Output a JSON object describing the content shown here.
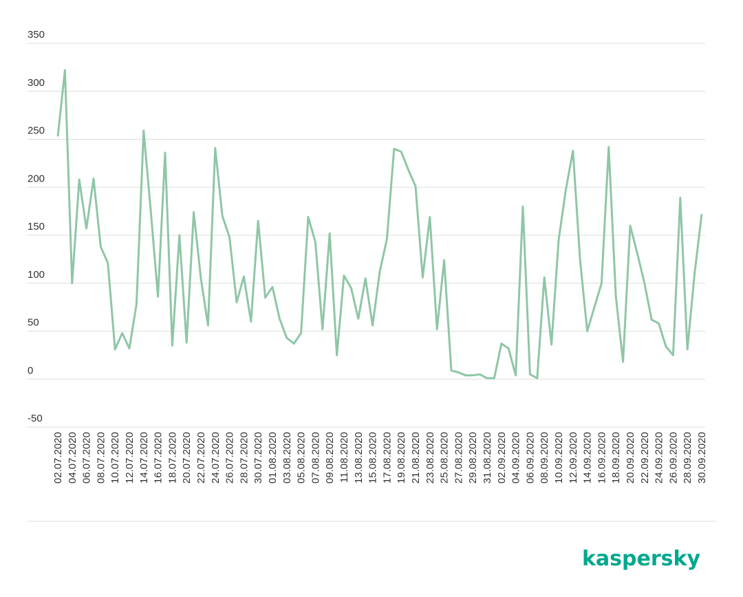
{
  "chart_data": {
    "type": "line",
    "categories": [
      "02.07.2020",
      null,
      "04.07.2020",
      null,
      "06.07.2020",
      null,
      "08.07.2020",
      null,
      "10.07.2020",
      null,
      "12.07.2020",
      null,
      "14.07.2020",
      null,
      "16.07.2020",
      null,
      "18.07.2020",
      null,
      "20.07.2020",
      null,
      "22.07.2020",
      null,
      "24.07.2020",
      null,
      "26.07.2020",
      null,
      "28.07.2020",
      null,
      "30.07.2020",
      null,
      "01.08.2020",
      null,
      "03.08.2020",
      null,
      "05.08.2020",
      null,
      "07.08.2020",
      null,
      "09.08.2020",
      null,
      "11.08.2020",
      null,
      "13.08.2020",
      null,
      "15.08.2020",
      null,
      "17.08.2020",
      null,
      "19.08.2020",
      null,
      "21.08.2020",
      null,
      "23.08.2020",
      null,
      "25.08.2020",
      null,
      "27.08.2020",
      null,
      "29.08.2020",
      null,
      "31.08.2020",
      null,
      "02.09.2020",
      null,
      "04.09.2020",
      null,
      "06.09.2020",
      null,
      "08.09.2020",
      null,
      "10.09.2020",
      null,
      "12.09.2020",
      null,
      "14.09.2020",
      null,
      "16.09.2020",
      null,
      "18.09.2020",
      null,
      "20.09.2020",
      null,
      "22.09.2020",
      null,
      "24.09.2020",
      null,
      "26.09.2020",
      null,
      "28.09.2020",
      null,
      "30.09.2020"
    ],
    "series": [
      {
        "color": "#8fc6a6",
        "values": [
          253,
          322,
          100,
          208,
          157,
          209,
          138,
          121,
          31,
          48,
          32,
          78,
          259,
          175,
          86,
          236,
          35,
          150,
          38,
          174,
          105,
          56,
          241,
          170,
          148,
          80,
          107,
          60,
          165,
          85,
          96,
          63,
          43,
          37,
          48,
          169,
          143,
          52,
          152,
          25,
          108,
          95,
          63,
          105,
          56,
          112,
          146,
          240,
          237,
          218,
          201,
          106,
          169,
          52,
          124,
          9,
          7,
          4,
          4,
          5,
          1,
          1,
          37,
          32,
          4,
          180,
          5,
          1,
          106,
          36,
          145,
          197,
          238,
          124,
          50,
          75,
          100,
          242,
          86,
          18,
          160,
          131,
          100,
          62,
          58,
          34,
          25,
          189,
          31,
          110,
          172
        ]
      }
    ],
    "ylim": [
      -50,
      350
    ],
    "yticks": [
      -50,
      0,
      50,
      100,
      150,
      200,
      250,
      300,
      350
    ],
    "grid": true,
    "logo": "kaspersky"
  }
}
